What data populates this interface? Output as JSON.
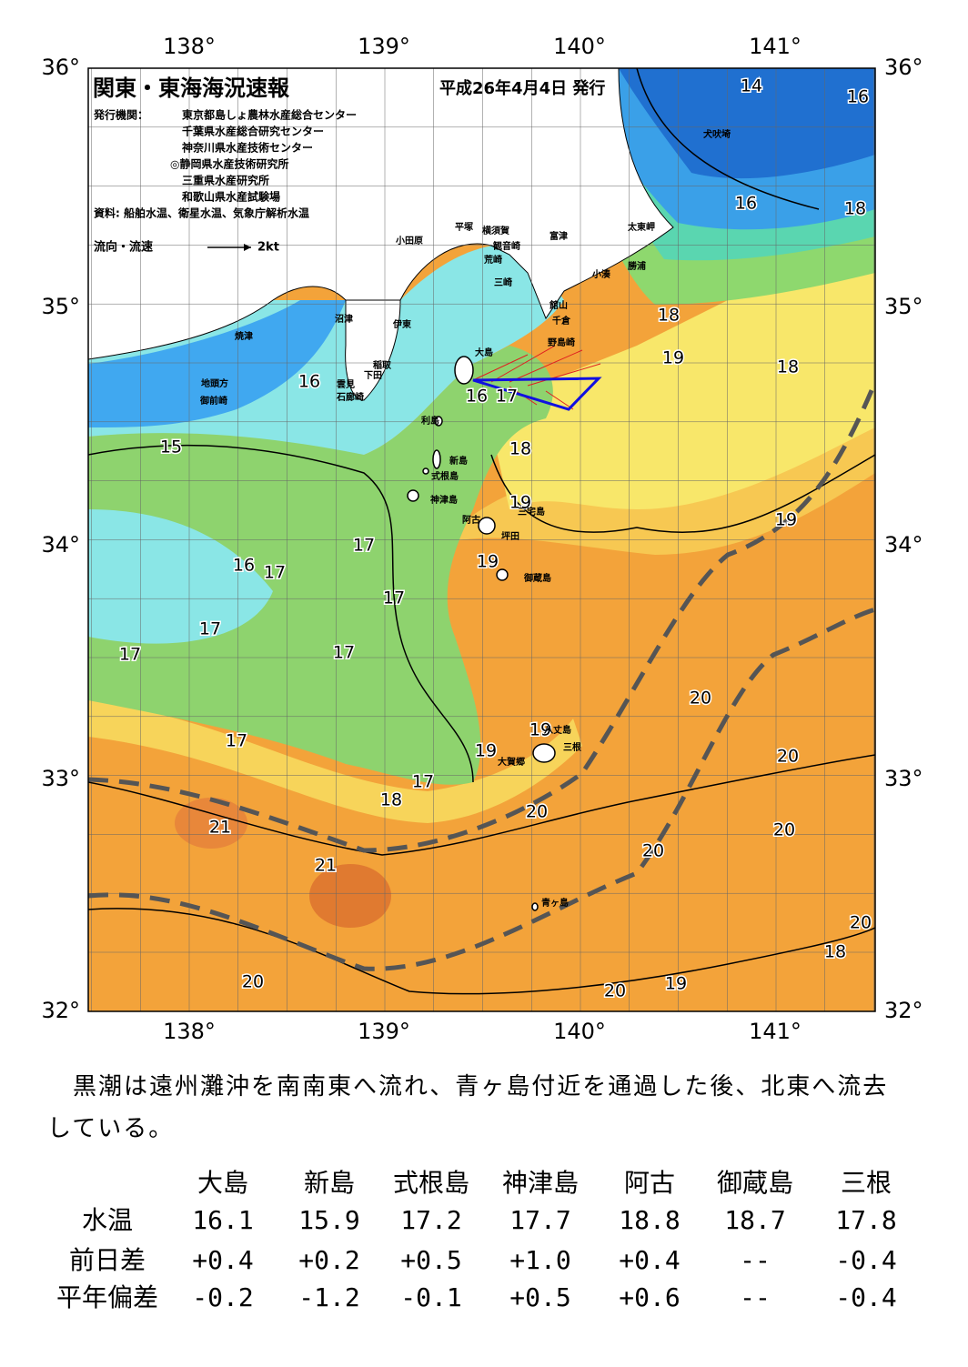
{
  "header": {
    "title": "関東・東海海況速報",
    "date": "平成26年4月4日 発行",
    "issuer_label": "発行機関：",
    "issuers": [
      "東京都島しょ農林水産総合センター",
      "千葉県水産総合研究センター",
      "神奈川県水産技術センター",
      "◎静岡県水産技術研究所",
      "三重県水産研究所",
      "和歌山県水産試験場"
    ],
    "source": "資料: 船舶水温、衛星水温、気象庁解析水温",
    "legend_label": "流向・流速",
    "legend_speed": "2kt"
  },
  "axes": {
    "lon_labels": [
      "138°",
      "139°",
      "140°",
      "141°"
    ],
    "lat_labels": [
      "36°",
      "35°",
      "34°",
      "33°",
      "32°"
    ]
  },
  "temperature_labels": [
    "14",
    "16",
    "16",
    "18",
    "18",
    "19",
    "18",
    "16",
    "16",
    "17",
    "15",
    "18",
    "19",
    "19",
    "17",
    "19",
    "16",
    "17",
    "17",
    "17",
    "17",
    "17",
    "20",
    "19",
    "17",
    "19",
    "20",
    "17",
    "18",
    "20",
    "21",
    "20",
    "20",
    "21",
    "20",
    "18",
    "20",
    "19",
    "20"
  ],
  "place_names": [
    "犬吠埼",
    "太東岬",
    "勝浦",
    "小湊",
    "富津",
    "横須賀",
    "平塚",
    "観音崎",
    "荒崎",
    "三崎",
    "小田原",
    "館山",
    "千倉",
    "野島崎",
    "沼津",
    "伊東",
    "焼津",
    "稲取",
    "下田",
    "雲見",
    "石廊崎",
    "地頭方",
    "御前崎",
    "大島",
    "利島",
    "新島",
    "式根島",
    "神津島",
    "三宅島",
    "阿古",
    "坪田",
    "御蔵島",
    "八丈島",
    "三根",
    "大賀郷",
    "青ヶ島"
  ],
  "paragraph": "　黒潮は遠州灘沖を南南東へ流れ、青ヶ島付近を通過した後、北東へ流去している。",
  "table": {
    "columns": [
      "大島",
      "新島",
      "式根島",
      "神津島",
      "阿古",
      "御蔵島",
      "三根"
    ],
    "rows": [
      {
        "label": "水温",
        "values": [
          "16.1",
          "15.9",
          "17.2",
          "17.7",
          "18.8",
          "18.7",
          "17.8"
        ]
      },
      {
        "label": "前日差",
        "values": [
          "+0.4",
          "+0.2",
          "+0.5",
          "+1.0",
          "+0.4",
          "--",
          "-0.4"
        ]
      },
      {
        "label": "平年偏差",
        "values": [
          "-0.2",
          "-1.2",
          "-0.1",
          "+0.5",
          "+0.6",
          "--",
          "-0.4"
        ]
      }
    ]
  }
}
